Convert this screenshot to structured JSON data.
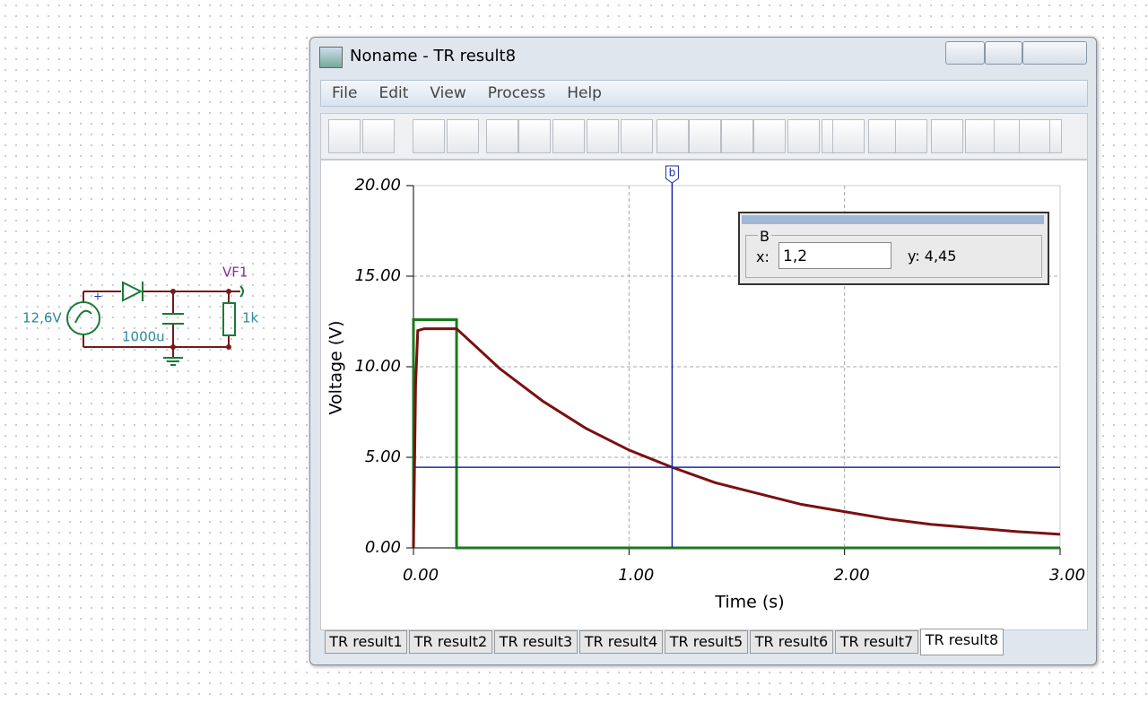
{
  "circuit": {
    "source_label": "12,6V",
    "capacitor_label": "1000u",
    "probe_label": "VF1",
    "resistor_label": "1k"
  },
  "window": {
    "title": "Noname - TR result8",
    "menu": [
      "File",
      "Edit",
      "View",
      "Process",
      "Help"
    ],
    "cursor_box": {
      "group": "B",
      "x_label": "x:",
      "x_value": "1,2",
      "y_text": "y: 4,45"
    },
    "tabs": [
      "TR result1",
      "TR result2",
      "TR result3",
      "TR result4",
      "TR result5",
      "TR result6",
      "TR result7",
      "TR result8"
    ],
    "active_tab": "TR result8"
  },
  "chart_data": {
    "type": "line",
    "xlabel": "Time (s)",
    "ylabel": "Voltage (V)",
    "xlim": [
      0,
      3
    ],
    "ylim": [
      0,
      20
    ],
    "xticks": [
      {
        "value": 0,
        "label": "0.00"
      },
      {
        "value": 1,
        "label": "1.00"
      },
      {
        "value": 2,
        "label": "2.00"
      },
      {
        "value": 3,
        "label": "3.00"
      }
    ],
    "yticks": [
      {
        "value": 0,
        "label": "0.00"
      },
      {
        "value": 5,
        "label": "5.00"
      },
      {
        "value": 10,
        "label": "10.00"
      },
      {
        "value": 15,
        "label": "15.00"
      },
      {
        "value": 20,
        "label": "20.00"
      }
    ],
    "grid": true,
    "series": [
      {
        "color": "#7a1010",
        "x": [
          0,
          0.01,
          0.02,
          0.05,
          0.2,
          0.4,
          0.6,
          0.8,
          1.0,
          1.2,
          1.4,
          1.6,
          1.8,
          2.0,
          2.2,
          2.4,
          2.6,
          2.8,
          3.0
        ],
        "values": [
          0,
          9,
          12.0,
          12.1,
          12.1,
          9.9,
          8.1,
          6.6,
          5.4,
          4.45,
          3.6,
          3.0,
          2.4,
          2.0,
          1.6,
          1.3,
          1.1,
          0.9,
          0.75
        ]
      },
      {
        "color": "#1a7a1a",
        "x": [
          0,
          0,
          0.2,
          0.2,
          3
        ],
        "values": [
          0,
          12.6,
          12.6,
          0,
          0
        ]
      }
    ],
    "cursor": {
      "label": "b",
      "x": 1.2,
      "y": 4.45,
      "color": "#1a2aa0"
    }
  }
}
